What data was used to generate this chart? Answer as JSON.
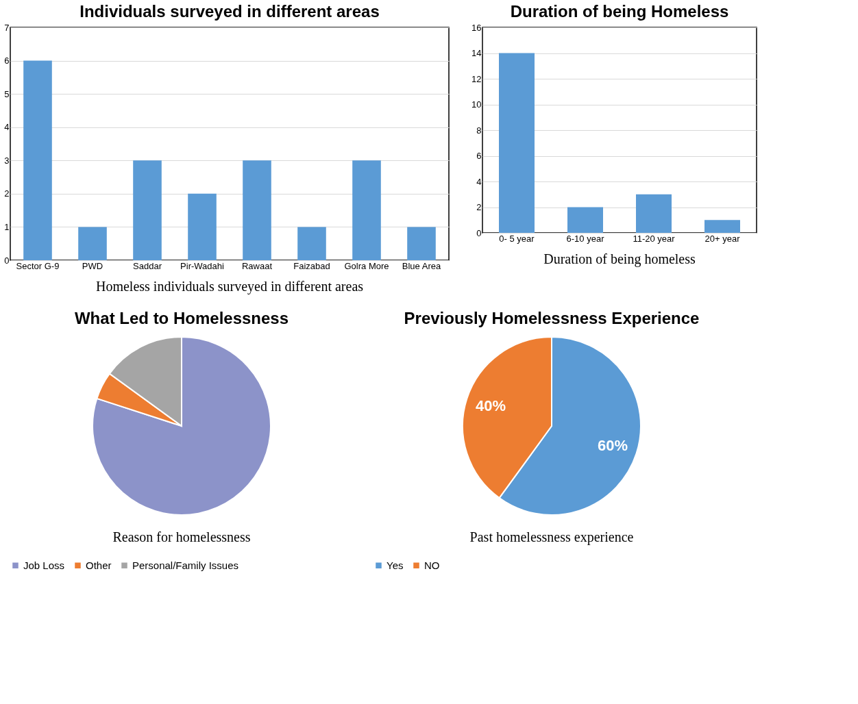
{
  "chart_data": [
    {
      "type": "bar",
      "title": "Individuals surveyed in different areas",
      "categories": [
        "Sector G-9",
        "PWD",
        "Saddar",
        "Pir-Wadahi",
        "Rawaat",
        "Faizabad",
        "Golra More",
        "Blue Area"
      ],
      "values": [
        6,
        1,
        3,
        2,
        3,
        1,
        3,
        1
      ],
      "color": "#5b9bd5",
      "ylim": [
        0,
        7
      ],
      "yticks": [
        0,
        1,
        2,
        3,
        4,
        5,
        6,
        7
      ],
      "grid": "y",
      "annotations": [
        "Homeless individuals surveyed in different areas"
      ]
    },
    {
      "type": "bar",
      "title": "Duration of being Homeless",
      "categories": [
        "0- 5 year",
        "6-10 year",
        "11-20 year",
        "20+ year"
      ],
      "values": [
        14,
        2,
        3,
        1
      ],
      "color": "#5b9bd5",
      "ylim": [
        0,
        16
      ],
      "yticks": [
        0,
        2,
        4,
        6,
        8,
        10,
        12,
        14,
        16
      ],
      "grid": "y",
      "annotations": [
        "Duration of being homeless"
      ]
    },
    {
      "type": "pie",
      "title": "What Led to Homelessness",
      "categories": [
        "Job Loss",
        "Other",
        "Personal/Family Issues"
      ],
      "values": [
        80,
        5,
        15
      ],
      "colors": [
        "#8c93c9",
        "#ed7d31",
        "#a5a5a5"
      ],
      "legend": "bottom",
      "annotations": [
        "Reason for homelessness"
      ]
    },
    {
      "type": "pie",
      "title": "Previously Homelessness Experience",
      "categories": [
        "Yes",
        "NO"
      ],
      "values": [
        60,
        40
      ],
      "colors": [
        "#5b9bd5",
        "#ed7d31"
      ],
      "value_labels": [
        "60%",
        "40%"
      ],
      "legend": "bottom",
      "annotations": [
        "Past homelessness experience"
      ]
    }
  ]
}
